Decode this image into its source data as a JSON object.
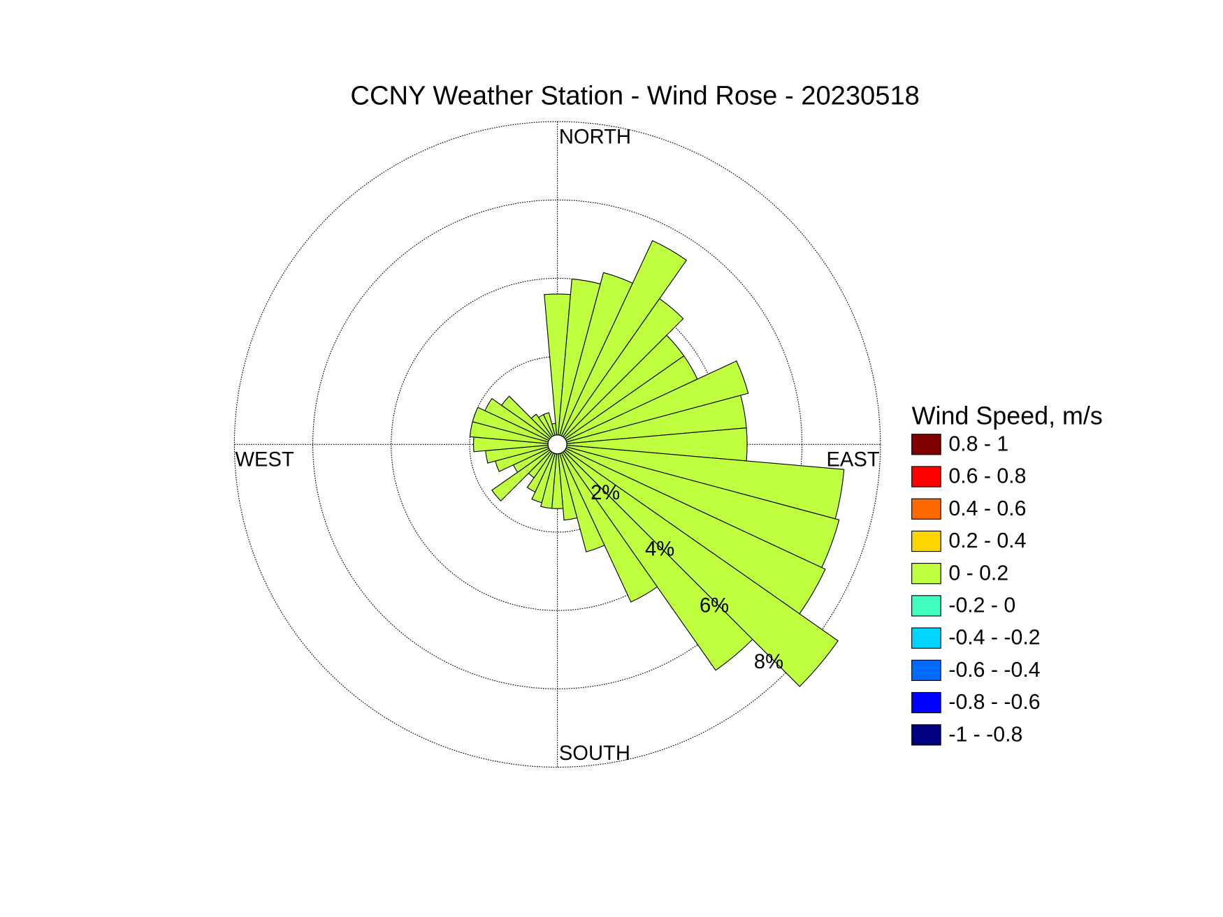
{
  "chart_data": {
    "type": "windrose",
    "title": "CCNY Weather Station - Wind Rose - 20230518",
    "direction_labels": [
      "NORTH",
      "EAST",
      "SOUTH",
      "WEST"
    ],
    "x": [
      0,
      10,
      20,
      30,
      40,
      50,
      60,
      70,
      80,
      90,
      100,
      110,
      120,
      130,
      140,
      150,
      160,
      170,
      180,
      190,
      200,
      210,
      220,
      230,
      240,
      250,
      260,
      270,
      280,
      290,
      300,
      310,
      320,
      330,
      340,
      350
    ],
    "values": [
      3.6,
      4.0,
      4.3,
      5.5,
      4.3,
      3.7,
      3.7,
      4.8,
      4.6,
      4.6,
      7.1,
      7.2,
      7.3,
      8.5,
      6.8,
      4.2,
      2.6,
      1.7,
      1.4,
      1.4,
      1.3,
      1.1,
      0.8,
      1.8,
      1.0,
      1.4,
      1.6,
      1.9,
      2.0,
      2.0,
      1.8,
      1.5,
      0.7,
      0.6,
      0.6,
      0.3
    ],
    "color": "#bfff40",
    "rlim": [
      0,
      8
    ],
    "rticks": [
      {
        "value": 2,
        "label": "2%"
      },
      {
        "value": 4,
        "label": "4%"
      },
      {
        "value": 6,
        "label": "6%"
      },
      {
        "value": 8,
        "label": "8%"
      }
    ],
    "grid": true,
    "legend": {
      "title": "Wind Speed, m/s",
      "position": "right",
      "items": [
        {
          "label": "0.8 - 1",
          "color": "#800000"
        },
        {
          "label": "0.6 - 0.8",
          "color": "#ff0000"
        },
        {
          "label": "0.4 - 0.6",
          "color": "#ff6a00"
        },
        {
          "label": "0.2 - 0.4",
          "color": "#ffd500"
        },
        {
          "label": "0 - 0.2",
          "color": "#bfff40"
        },
        {
          "label": "-0.2 - 0",
          "color": "#40ffbf"
        },
        {
          "label": "-0.4 - -0.2",
          "color": "#00d5ff"
        },
        {
          "label": "-0.6 - -0.4",
          "color": "#006aff"
        },
        {
          "label": "-0.8 - -0.6",
          "color": "#0000ff"
        },
        {
          "label": "-1 - -0.8",
          "color": "#000080"
        }
      ]
    }
  }
}
